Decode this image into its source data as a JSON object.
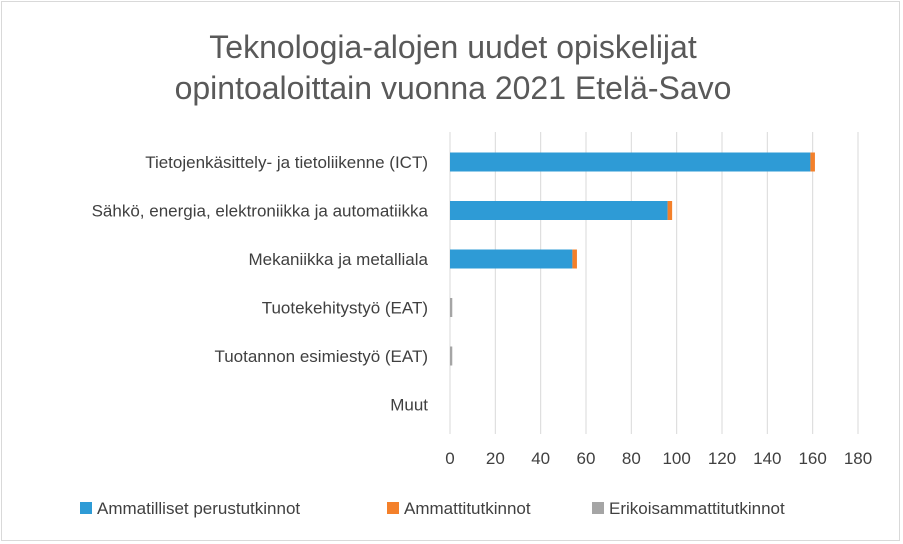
{
  "chart_data": {
    "type": "bar",
    "orientation": "horizontal",
    "stacked": true,
    "title": "Teknologia-alojen uudet opiskelijat opintoaloittain vuonna 2021 Etelä-Savo",
    "title_lines": [
      "Teknologia-alojen uudet opiskelijat",
      "opintoaloittain vuonna 2021 Etelä-Savo"
    ],
    "categories": [
      "Tietojenkäsittely- ja tietoliikenne (ICT)",
      "Sähkö, energia, elektroniikka ja automatiikka",
      "Mekaniikka ja metalliala",
      "Tuotekehitystyö (EAT)",
      "Tuotannon esimiestyö (EAT)",
      "Muut"
    ],
    "series": [
      {
        "name": "Ammatilliset perustutkinnot",
        "values": [
          159,
          96,
          54,
          0,
          0,
          0
        ]
      },
      {
        "name": "Ammattitutkinnot",
        "values": [
          2,
          2,
          2,
          0,
          0,
          0
        ]
      },
      {
        "name": "Erikoisammattitutkinnot",
        "values": [
          0,
          0,
          0,
          1,
          1,
          0
        ]
      }
    ],
    "colors": [
      "#2e9bd6",
      "#f4802a",
      "#a5a5a5"
    ],
    "xlim": [
      0,
      180
    ],
    "xticks": [
      "0",
      "20",
      "40",
      "60",
      "80",
      "100",
      "120",
      "140",
      "160",
      "180"
    ],
    "xlabel": "",
    "ylabel": "",
    "grid": "vertical",
    "legend_position": "bottom"
  }
}
